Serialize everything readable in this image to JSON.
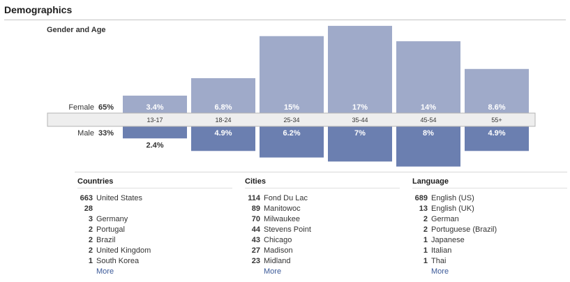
{
  "header": {
    "title": "Demographics"
  },
  "chart_data": {
    "type": "bar",
    "title": "Gender and Age",
    "categories": [
      "13-17",
      "18-24",
      "25-34",
      "35-44",
      "45-54",
      "55+"
    ],
    "series": [
      {
        "name": "Female",
        "total_label": "65%",
        "values": [
          3.4,
          6.8,
          15,
          17,
          14,
          8.6
        ],
        "labels": [
          "3.4%",
          "6.8%",
          "15%",
          "17%",
          "14%",
          "8.6%"
        ],
        "color": "#9faac9"
      },
      {
        "name": "Male",
        "total_label": "33%",
        "values": [
          2.4,
          4.9,
          6.2,
          7,
          8,
          4.9
        ],
        "labels": [
          "2.4%",
          "4.9%",
          "6.2%",
          "7%",
          "8%",
          "4.9%"
        ],
        "color": "#6b7fb0"
      }
    ]
  },
  "countries": {
    "title": "Countries",
    "items": [
      {
        "count": "663",
        "name": "United States"
      },
      {
        "count": "28",
        "name": ""
      },
      {
        "count": "3",
        "name": "Germany"
      },
      {
        "count": "2",
        "name": "Portugal"
      },
      {
        "count": "2",
        "name": "Brazil"
      },
      {
        "count": "2",
        "name": "United Kingdom"
      },
      {
        "count": "1",
        "name": "South Korea"
      }
    ],
    "more": "More"
  },
  "cities": {
    "title": "Cities",
    "items": [
      {
        "count": "114",
        "name": "Fond Du Lac"
      },
      {
        "count": "89",
        "name": "Manitowoc"
      },
      {
        "count": "70",
        "name": "Milwaukee"
      },
      {
        "count": "44",
        "name": "Stevens Point"
      },
      {
        "count": "43",
        "name": "Chicago"
      },
      {
        "count": "27",
        "name": "Madison"
      },
      {
        "count": "23",
        "name": "Midland"
      }
    ],
    "more": "More"
  },
  "language": {
    "title": "Language",
    "items": [
      {
        "count": "689",
        "name": "English (US)"
      },
      {
        "count": "13",
        "name": "English (UK)"
      },
      {
        "count": "2",
        "name": "German"
      },
      {
        "count": "2",
        "name": "Portuguese (Brazil)"
      },
      {
        "count": "1",
        "name": "Japanese"
      },
      {
        "count": "1",
        "name": "Italian"
      },
      {
        "count": "1",
        "name": "Thai"
      }
    ],
    "more": "More"
  }
}
